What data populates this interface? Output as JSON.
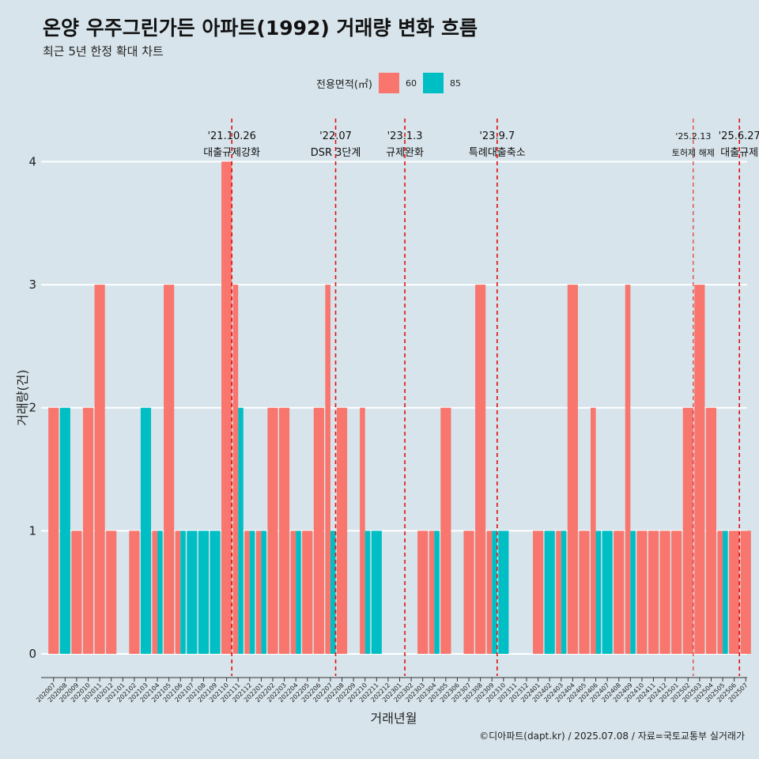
{
  "title": "온양 우주그린가든 아파트(1992) 거래량 변화 흐름",
  "subtitle": "최근 5년 한정 확대 차트",
  "caption": "©디아파트(dapt.kr) / 2025.07.08 / 자료=국토교통부 실거래가",
  "legend": {
    "title": "전용면적(㎡)",
    "items": [
      {
        "label": "60",
        "color": "#f8766d"
      },
      {
        "label": "85",
        "color": "#00bfc4"
      }
    ]
  },
  "chart_data": {
    "type": "bar",
    "title": "온양 우주그린가든 아파트(1992) 거래량 변화 흐름",
    "xlabel": "거래년월",
    "ylabel": "거래량(건)",
    "ylim": [
      -0.18,
      4.35
    ],
    "yticks": [
      0,
      1,
      2,
      3,
      4
    ],
    "categories": [
      "202007",
      "202008",
      "202009",
      "202010",
      "202011",
      "202012",
      "202101",
      "202102",
      "202103",
      "202104",
      "202105",
      "202106",
      "202107",
      "202108",
      "202109",
      "202110",
      "202111",
      "202112",
      "202201",
      "202202",
      "202203",
      "202204",
      "202205",
      "202206",
      "202207",
      "202208",
      "202209",
      "202210",
      "202211",
      "202212",
      "202301",
      "202302",
      "202303",
      "202304",
      "202305",
      "202306",
      "202307",
      "202308",
      "202309",
      "202310",
      "202311",
      "202312",
      "202401",
      "202402",
      "202403",
      "202404",
      "202405",
      "202406",
      "202407",
      "202408",
      "202409",
      "202410",
      "202411",
      "202412",
      "202501",
      "202502",
      "202503",
      "202504",
      "202505",
      "202506",
      "202507"
    ],
    "series": [
      {
        "name": "60",
        "color": "#f8766d",
        "values": [
          2,
          0,
          1,
          2,
          3,
          1,
          0,
          1,
          0,
          1,
          3,
          1,
          0,
          0,
          0,
          4,
          3,
          1,
          1,
          2,
          2,
          1,
          1,
          2,
          3,
          2,
          0,
          2,
          0,
          0,
          0,
          0,
          1,
          1,
          2,
          0,
          1,
          3,
          1,
          0,
          0,
          0,
          1,
          0,
          1,
          3,
          1,
          2,
          0,
          1,
          3,
          1,
          1,
          1,
          1,
          2,
          3,
          2,
          1,
          1,
          1
        ]
      },
      {
        "name": "85",
        "color": "#00bfc4",
        "values": [
          0,
          2,
          0,
          0,
          0,
          0,
          0,
          0,
          2,
          1,
          0,
          1,
          1,
          1,
          1,
          0,
          2,
          1,
          1,
          0,
          0,
          1,
          0,
          0,
          1,
          0,
          0,
          1,
          1,
          0,
          0,
          0,
          0,
          1,
          0,
          0,
          0,
          0,
          1,
          1,
          0,
          0,
          0,
          1,
          1,
          0,
          0,
          1,
          1,
          0,
          1,
          0,
          0,
          0,
          0,
          0,
          0,
          0,
          1,
          0,
          0
        ]
      }
    ],
    "annotations": [
      {
        "at": "202110",
        "line1": "'21.10.26",
        "line2": "대출규제강화"
      },
      {
        "at": "202207",
        "line1": "'22.07",
        "line2": "DSR 3단계"
      },
      {
        "at": "202301",
        "line1": "'23.1.3",
        "line2": "규제완화"
      },
      {
        "at": "202309",
        "line1": "'23.9.7",
        "line2": "특례대출축소"
      },
      {
        "at": "202502",
        "line1": "'25.2.13",
        "line2": "토허제 해제"
      },
      {
        "at": "202506",
        "line1": "'25.6.27",
        "line2": "대출규제"
      }
    ]
  }
}
